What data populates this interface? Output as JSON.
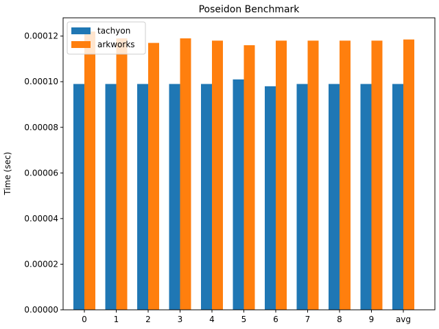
{
  "chart_data": {
    "type": "bar",
    "title": "Poseidon Benchmark",
    "xlabel": "",
    "ylabel": "Time (sec)",
    "categories": [
      "0",
      "1",
      "2",
      "3",
      "4",
      "5",
      "6",
      "7",
      "8",
      "9",
      "avg"
    ],
    "series": [
      {
        "name": "tachyon",
        "color": "#1f77b4",
        "values": [
          9.9e-05,
          9.9e-05,
          9.9e-05,
          9.9e-05,
          9.9e-05,
          0.000101,
          9.8e-05,
          9.9e-05,
          9.9e-05,
          9.9e-05,
          9.9e-05
        ]
      },
      {
        "name": "arkworks",
        "color": "#ff7f0e",
        "values": [
          0.000122,
          0.000119,
          0.000117,
          0.000119,
          0.000118,
          0.000116,
          0.000118,
          0.000118,
          0.000118,
          0.000118,
          0.0001185
        ]
      }
    ],
    "ylim": [
      0,
      0.000128
    ],
    "yticks": [
      "0.00000",
      "0.00002",
      "0.00004",
      "0.00006",
      "0.00008",
      "0.00010",
      "0.00012"
    ],
    "ytick_values": [
      0,
      2e-05,
      4e-05,
      6e-05,
      8e-05,
      0.0001,
      0.00012
    ],
    "grid": false,
    "legend_position": "top-left"
  }
}
